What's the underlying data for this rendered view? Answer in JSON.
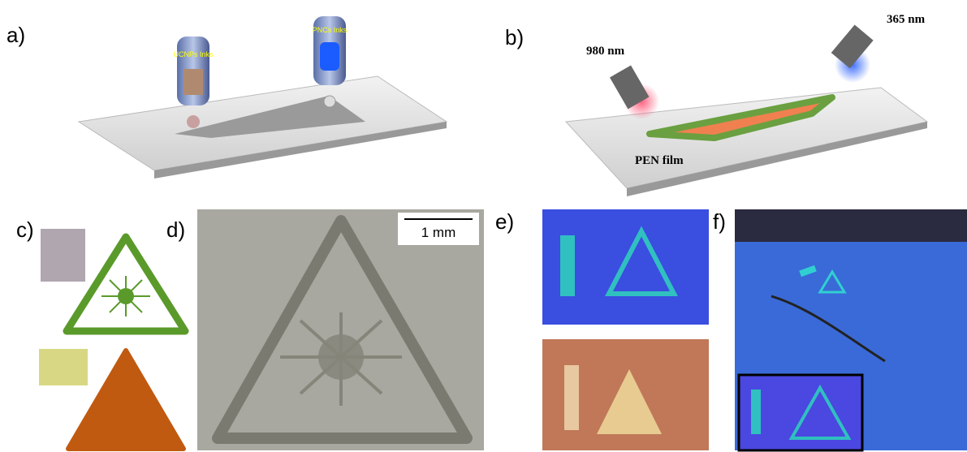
{
  "panels": [
    {
      "label": "a)",
      "texts": [
        "UCNPs Inks",
        "PNCs Inks"
      ]
    },
    {
      "label": "b)",
      "texts": [
        "980 nm",
        "365 nm",
        "PEN film"
      ]
    },
    {
      "label": "c)"
    },
    {
      "label": "d)",
      "texts": [
        "1 mm"
      ]
    },
    {
      "label": "e)"
    },
    {
      "label": "f)"
    }
  ]
}
